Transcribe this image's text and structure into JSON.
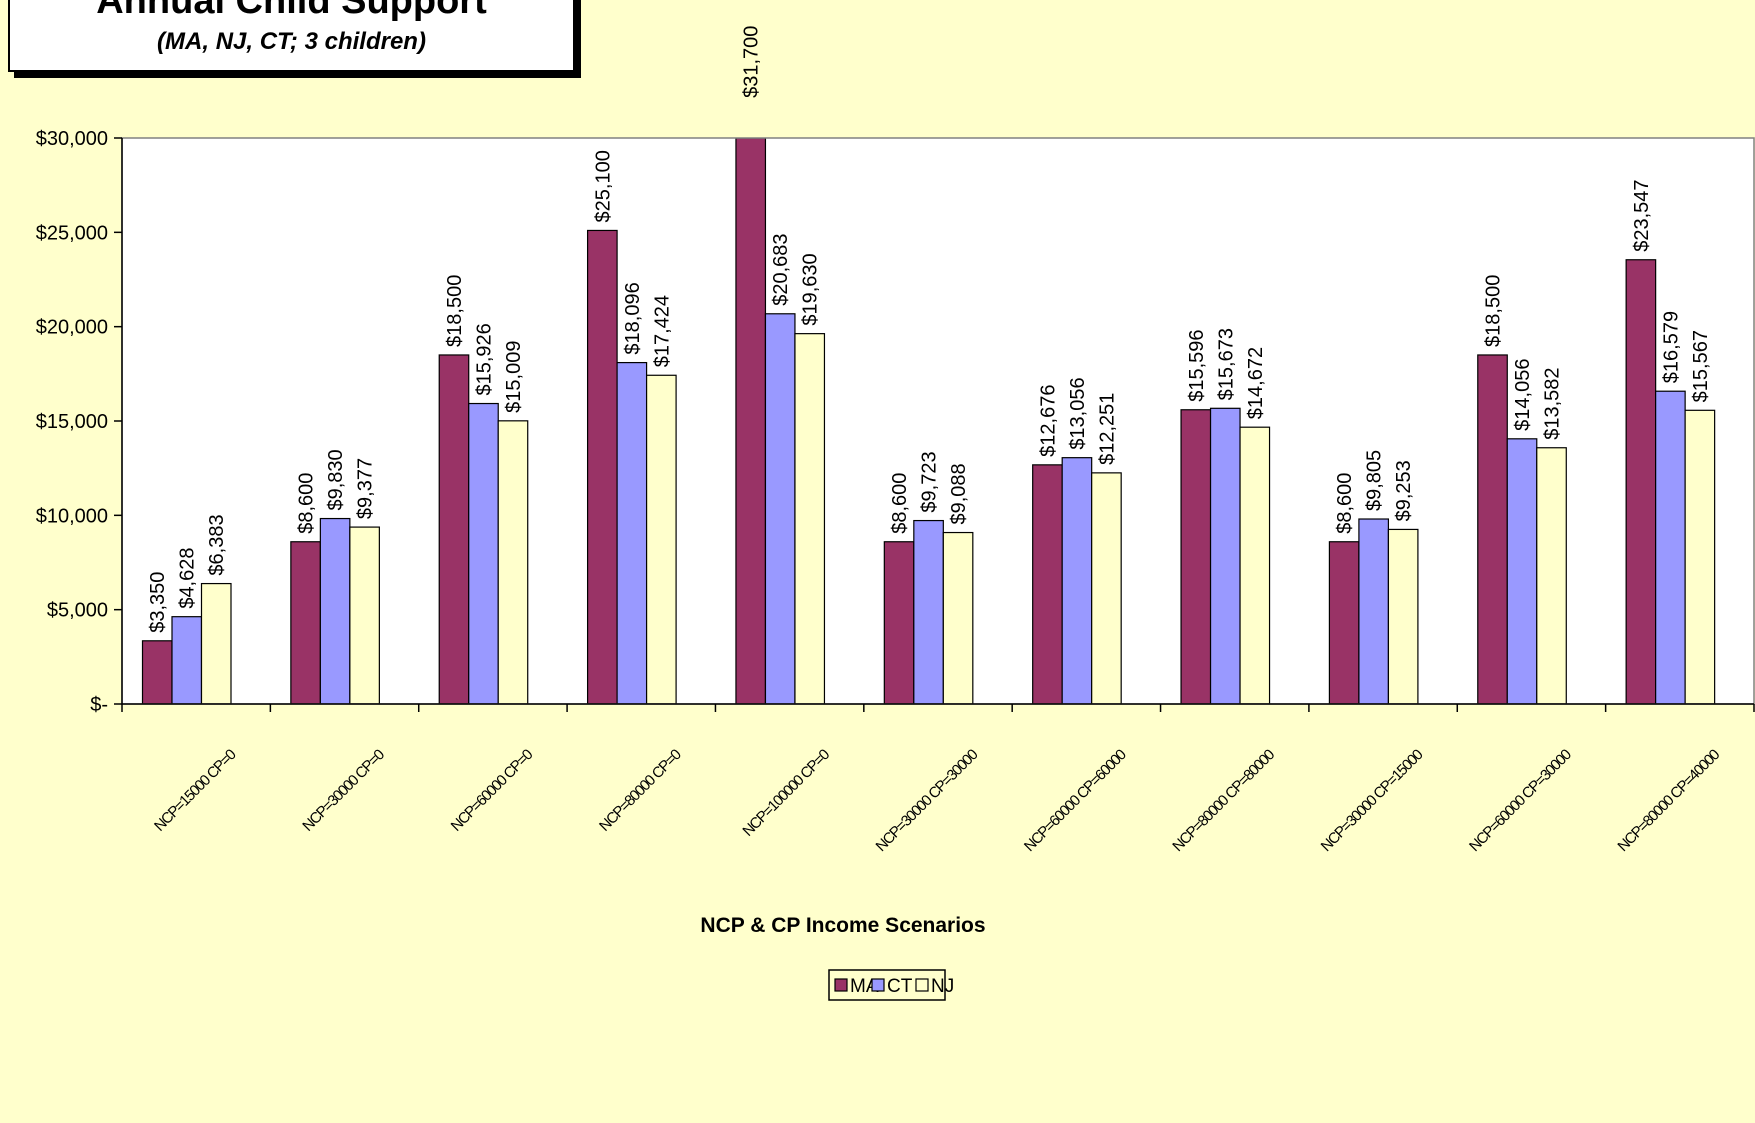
{
  "chart_data": {
    "type": "bar",
    "title": "Annual Child Support",
    "subtitle": "(MA, NJ, CT; 3 children)",
    "xlabel": "NCP & CP Income Scenarios",
    "ylabel": "",
    "ylim": [
      0,
      30000
    ],
    "yticks": [
      0,
      5000,
      10000,
      15000,
      20000,
      25000,
      30000
    ],
    "ytick_labels": [
      "$-",
      "$5,000",
      "$10,000",
      "$15,000",
      "$20,000",
      "$25,000",
      "$30,000"
    ],
    "grid": false,
    "legend_position": "bottom",
    "categories": [
      "NCP=15000 CP=0",
      "NCP=30000 CP=0",
      "NCP=60000 CP=0",
      "NCP=80000 CP=0",
      "NCP=100000 CP=0",
      "NCP=30000 CP=30000",
      "NCP=60000 CP=60000",
      "NCP=80000 CP=80000",
      "NCP=30000 CP=15000",
      "NCP=60000 CP=30000",
      "NCP=80000 CP=40000"
    ],
    "series": [
      {
        "name": "MA",
        "color": "#993366",
        "values": [
          3350,
          8600,
          18500,
          25100,
          31700,
          8600,
          12676,
          15596,
          8600,
          18500,
          23547
        ],
        "labels": [
          "$3,350",
          "$8,600",
          "$18,500",
          "$25,100",
          "$31,700",
          "$8,600",
          "$12,676",
          "$15,596",
          "$8,600",
          "$18,500",
          "$23,547"
        ]
      },
      {
        "name": "CT",
        "color": "#9999ff",
        "values": [
          4628,
          9830,
          15926,
          18096,
          20683,
          9723,
          13056,
          15673,
          9805,
          14056,
          16579
        ],
        "labels": [
          "$4,628",
          "$9,830",
          "$15,926",
          "$18,096",
          "$20,683",
          "$9,723",
          "$13,056",
          "$15,673",
          "$9,805",
          "$14,056",
          "$16,579"
        ]
      },
      {
        "name": "NJ",
        "color": "#ffffcc",
        "values": [
          6383,
          9377,
          15009,
          17424,
          19630,
          9088,
          12251,
          14672,
          9253,
          13582,
          15567
        ],
        "labels": [
          "$6,383",
          "$9,377",
          "$15,009",
          "$17,424",
          "$19,630",
          "$9,088",
          "$12,251",
          "$14,672",
          "$9,253",
          "$13,582",
          "$15,567"
        ]
      }
    ]
  }
}
